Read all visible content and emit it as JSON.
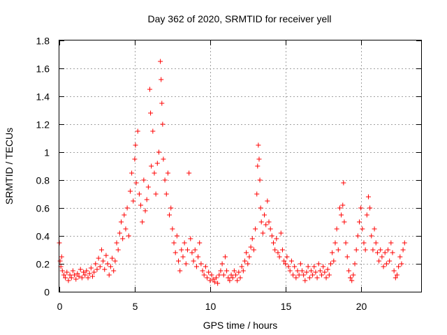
{
  "chart_data": {
    "type": "scatter",
    "title": "Day 362 of 2020, SRMTID for receiver yell",
    "xlabel": "GPS time / hours",
    "ylabel": "SRMTID / TECUs",
    "xlim": [
      0,
      24
    ],
    "ylim": [
      0,
      1.8
    ],
    "x_ticks": [
      0,
      5,
      10,
      15,
      20
    ],
    "x_tick_labels": [
      "0",
      "5",
      "10",
      "15",
      "20"
    ],
    "y_ticks": [
      0,
      0.2,
      0.4,
      0.6,
      0.8,
      1.0,
      1.2,
      1.4,
      1.6,
      1.8
    ],
    "y_tick_labels": [
      "0",
      "0.2",
      "0.4",
      "0.6",
      "0.8",
      "1",
      "1.2",
      "1.4",
      "1.6",
      "1.8"
    ],
    "grid": true,
    "marker": "+",
    "color": "#ff0000",
    "series": [
      {
        "name": "SRMTID",
        "points": [
          [
            0.0,
            0.35
          ],
          [
            0.05,
            0.22
          ],
          [
            0.1,
            0.18
          ],
          [
            0.15,
            0.25
          ],
          [
            0.2,
            0.15
          ],
          [
            0.3,
            0.12
          ],
          [
            0.4,
            0.1
          ],
          [
            0.5,
            0.14
          ],
          [
            0.6,
            0.08
          ],
          [
            0.7,
            0.12
          ],
          [
            0.8,
            0.1
          ],
          [
            0.9,
            0.15
          ],
          [
            1.0,
            0.12
          ],
          [
            1.1,
            0.09
          ],
          [
            1.2,
            0.13
          ],
          [
            1.3,
            0.11
          ],
          [
            1.4,
            0.16
          ],
          [
            1.5,
            0.1
          ],
          [
            1.6,
            0.14
          ],
          [
            1.7,
            0.12
          ],
          [
            1.8,
            0.15
          ],
          [
            1.9,
            0.1
          ],
          [
            2.0,
            0.13
          ],
          [
            2.1,
            0.17
          ],
          [
            2.2,
            0.11
          ],
          [
            2.3,
            0.14
          ],
          [
            2.4,
            0.2
          ],
          [
            2.5,
            0.16
          ],
          [
            2.6,
            0.24
          ],
          [
            2.7,
            0.18
          ],
          [
            2.8,
            0.3
          ],
          [
            2.9,
            0.22
          ],
          [
            3.0,
            0.16
          ],
          [
            3.1,
            0.26
          ],
          [
            3.2,
            0.2
          ],
          [
            3.3,
            0.12
          ],
          [
            3.4,
            0.18
          ],
          [
            3.5,
            0.24
          ],
          [
            3.6,
            0.15
          ],
          [
            3.7,
            0.22
          ],
          [
            3.8,
            0.35
          ],
          [
            3.9,
            0.3
          ],
          [
            4.0,
            0.42
          ],
          [
            4.1,
            0.5
          ],
          [
            4.2,
            0.38
          ],
          [
            4.3,
            0.55
          ],
          [
            4.4,
            0.45
          ],
          [
            4.5,
            0.6
          ],
          [
            4.6,
            0.4
          ],
          [
            4.7,
            0.72
          ],
          [
            4.8,
            0.85
          ],
          [
            4.9,
            0.65
          ],
          [
            5.0,
            0.95
          ],
          [
            5.05,
            1.05
          ],
          [
            5.1,
            0.78
          ],
          [
            5.2,
            1.15
          ],
          [
            5.3,
            0.7
          ],
          [
            5.4,
            0.62
          ],
          [
            5.5,
            0.5
          ],
          [
            5.6,
            0.8
          ],
          [
            5.7,
            0.58
          ],
          [
            5.8,
            0.66
          ],
          [
            5.9,
            0.75
          ],
          [
            6.0,
            1.45
          ],
          [
            6.05,
            1.28
          ],
          [
            6.1,
            0.9
          ],
          [
            6.2,
            1.15
          ],
          [
            6.3,
            0.85
          ],
          [
            6.4,
            0.7
          ],
          [
            6.5,
            0.92
          ],
          [
            6.6,
            1.0
          ],
          [
            6.7,
            1.65
          ],
          [
            6.75,
            1.52
          ],
          [
            6.8,
            1.35
          ],
          [
            6.85,
            1.2
          ],
          [
            6.9,
            0.95
          ],
          [
            7.0,
            0.8
          ],
          [
            7.1,
            0.7
          ],
          [
            7.2,
            0.85
          ],
          [
            7.3,
            0.55
          ],
          [
            7.4,
            0.6
          ],
          [
            7.5,
            0.45
          ],
          [
            7.6,
            0.35
          ],
          [
            7.7,
            0.28
          ],
          [
            7.8,
            0.4
          ],
          [
            7.9,
            0.22
          ],
          [
            8.0,
            0.15
          ],
          [
            8.1,
            0.3
          ],
          [
            8.2,
            0.25
          ],
          [
            8.3,
            0.35
          ],
          [
            8.4,
            0.2
          ],
          [
            8.5,
            0.3
          ],
          [
            8.6,
            0.85
          ],
          [
            8.7,
            0.38
          ],
          [
            8.8,
            0.28
          ],
          [
            8.9,
            0.22
          ],
          [
            9.0,
            0.3
          ],
          [
            9.1,
            0.18
          ],
          [
            9.2,
            0.25
          ],
          [
            9.3,
            0.35
          ],
          [
            9.4,
            0.2
          ],
          [
            9.5,
            0.15
          ],
          [
            9.6,
            0.12
          ],
          [
            9.7,
            0.18
          ],
          [
            9.8,
            0.1
          ],
          [
            9.9,
            0.14
          ],
          [
            10.0,
            0.08
          ],
          [
            10.1,
            0.12
          ],
          [
            10.2,
            0.09
          ],
          [
            10.3,
            0.07
          ],
          [
            10.4,
            0.1
          ],
          [
            10.5,
            0.06
          ],
          [
            10.6,
            0.12
          ],
          [
            10.7,
            0.15
          ],
          [
            10.8,
            0.2
          ],
          [
            10.9,
            0.12
          ],
          [
            11.0,
            0.25
          ],
          [
            11.1,
            0.15
          ],
          [
            11.2,
            0.1
          ],
          [
            11.3,
            0.08
          ],
          [
            11.4,
            0.12
          ],
          [
            11.5,
            0.1
          ],
          [
            11.6,
            0.15
          ],
          [
            11.7,
            0.12
          ],
          [
            11.8,
            0.08
          ],
          [
            11.9,
            0.14
          ],
          [
            12.0,
            0.1
          ],
          [
            12.1,
            0.18
          ],
          [
            12.2,
            0.15
          ],
          [
            12.3,
            0.22
          ],
          [
            12.4,
            0.28
          ],
          [
            12.5,
            0.2
          ],
          [
            12.6,
            0.25
          ],
          [
            12.7,
            0.32
          ],
          [
            12.8,
            0.38
          ],
          [
            12.9,
            0.3
          ],
          [
            13.0,
            0.45
          ],
          [
            13.1,
            0.7
          ],
          [
            13.15,
            0.9
          ],
          [
            13.2,
            1.05
          ],
          [
            13.25,
            0.95
          ],
          [
            13.3,
            0.8
          ],
          [
            13.35,
            0.6
          ],
          [
            13.4,
            0.5
          ],
          [
            13.5,
            0.42
          ],
          [
            13.6,
            0.55
          ],
          [
            13.7,
            0.48
          ],
          [
            13.8,
            0.65
          ],
          [
            13.9,
            0.5
          ],
          [
            14.0,
            0.45
          ],
          [
            14.1,
            0.4
          ],
          [
            14.2,
            0.35
          ],
          [
            14.3,
            0.3
          ],
          [
            14.4,
            0.38
          ],
          [
            14.5,
            0.28
          ],
          [
            14.6,
            0.25
          ],
          [
            14.7,
            0.42
          ],
          [
            14.8,
            0.3
          ],
          [
            14.9,
            0.22
          ],
          [
            15.0,
            0.2
          ],
          [
            15.1,
            0.25
          ],
          [
            15.2,
            0.18
          ],
          [
            15.3,
            0.15
          ],
          [
            15.4,
            0.22
          ],
          [
            15.5,
            0.12
          ],
          [
            15.6,
            0.18
          ],
          [
            15.7,
            0.1
          ],
          [
            15.8,
            0.15
          ],
          [
            15.9,
            0.12
          ],
          [
            16.0,
            0.2
          ],
          [
            16.1,
            0.15
          ],
          [
            16.2,
            0.12
          ],
          [
            16.3,
            0.08
          ],
          [
            16.4,
            0.14
          ],
          [
            16.5,
            0.18
          ],
          [
            16.6,
            0.1
          ],
          [
            16.7,
            0.15
          ],
          [
            16.8,
            0.12
          ],
          [
            16.9,
            0.18
          ],
          [
            17.0,
            0.14
          ],
          [
            17.1,
            0.1
          ],
          [
            17.2,
            0.2
          ],
          [
            17.3,
            0.15
          ],
          [
            17.4,
            0.12
          ],
          [
            17.5,
            0.18
          ],
          [
            17.6,
            0.14
          ],
          [
            17.7,
            0.1
          ],
          [
            17.8,
            0.16
          ],
          [
            17.9,
            0.12
          ],
          [
            18.0,
            0.2
          ],
          [
            18.1,
            0.28
          ],
          [
            18.2,
            0.22
          ],
          [
            18.3,
            0.35
          ],
          [
            18.4,
            0.45
          ],
          [
            18.5,
            0.3
          ],
          [
            18.6,
            0.6
          ],
          [
            18.7,
            0.55
          ],
          [
            18.8,
            0.62
          ],
          [
            18.85,
            0.78
          ],
          [
            18.9,
            0.5
          ],
          [
            19.0,
            0.35
          ],
          [
            19.1,
            0.25
          ],
          [
            19.2,
            0.15
          ],
          [
            19.3,
            0.1
          ],
          [
            19.4,
            0.08
          ],
          [
            19.5,
            0.12
          ],
          [
            19.6,
            0.2
          ],
          [
            19.7,
            0.3
          ],
          [
            19.8,
            0.4
          ],
          [
            19.9,
            0.5
          ],
          [
            20.0,
            0.6
          ],
          [
            20.1,
            0.45
          ],
          [
            20.2,
            0.35
          ],
          [
            20.3,
            0.3
          ],
          [
            20.4,
            0.55
          ],
          [
            20.5,
            0.68
          ],
          [
            20.6,
            0.6
          ],
          [
            20.7,
            0.4
          ],
          [
            20.8,
            0.3
          ],
          [
            20.9,
            0.45
          ],
          [
            21.0,
            0.35
          ],
          [
            21.1,
            0.28
          ],
          [
            21.2,
            0.22
          ],
          [
            21.3,
            0.3
          ],
          [
            21.4,
            0.25
          ],
          [
            21.5,
            0.18
          ],
          [
            21.6,
            0.28
          ],
          [
            21.7,
            0.2
          ],
          [
            21.8,
            0.3
          ],
          [
            21.9,
            0.22
          ],
          [
            22.0,
            0.35
          ],
          [
            22.1,
            0.28
          ],
          [
            22.2,
            0.15
          ],
          [
            22.3,
            0.1
          ],
          [
            22.4,
            0.12
          ],
          [
            22.5,
            0.18
          ],
          [
            22.6,
            0.25
          ],
          [
            22.7,
            0.2
          ],
          [
            22.8,
            0.3
          ],
          [
            22.9,
            0.35
          ]
        ]
      }
    ]
  }
}
